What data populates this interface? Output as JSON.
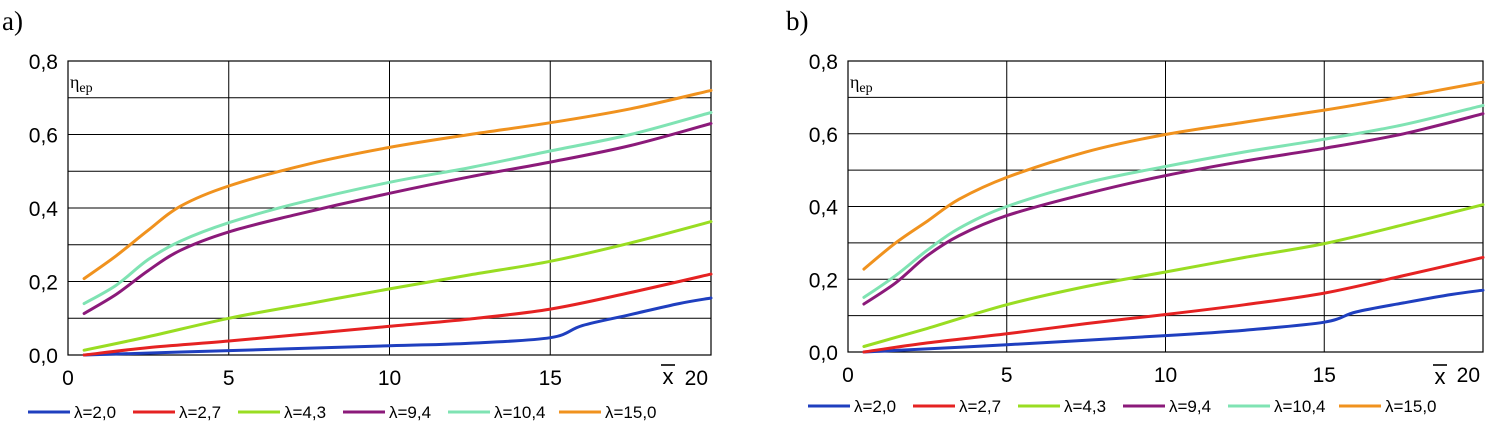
{
  "chart_data": [
    {
      "type": "line",
      "panel": "a)",
      "xlabel": "x",
      "ylabel": "ηep",
      "xlim": [
        0,
        20
      ],
      "ylim": [
        0,
        0.8
      ],
      "xticks": [
        0,
        5,
        10,
        15,
        20
      ],
      "xtick_labels": [
        "0",
        "5",
        "10",
        "15",
        "20"
      ],
      "yticks": [
        0,
        0.2,
        0.4,
        0.6,
        0.8
      ],
      "ytick_labels": [
        "0,0",
        "0,2",
        "0,4",
        "0,6",
        "0,8"
      ],
      "grid": true,
      "series": [
        {
          "name": "λ=2,0",
          "color": "#1f3fbf",
          "x": [
            0.5,
            5,
            10,
            12.5,
            15,
            16,
            17.5,
            19,
            20
          ],
          "y": [
            0.0,
            0.012,
            0.025,
            0.032,
            0.047,
            0.08,
            0.11,
            0.14,
            0.155
          ]
        },
        {
          "name": "λ=2,7",
          "color": "#e52222",
          "x": [
            0.5,
            2.5,
            5,
            7.5,
            10,
            12.5,
            15,
            17.5,
            20
          ],
          "y": [
            0.0,
            0.02,
            0.038,
            0.058,
            0.078,
            0.098,
            0.125,
            0.17,
            0.22
          ]
        },
        {
          "name": "λ=4,3",
          "color": "#99dd22",
          "x": [
            0.5,
            2.5,
            5,
            7.5,
            10,
            12.5,
            15,
            17.5,
            20
          ],
          "y": [
            0.013,
            0.05,
            0.1,
            0.14,
            0.18,
            0.218,
            0.255,
            0.305,
            0.363
          ]
        },
        {
          "name": "λ=9,4",
          "color": "#8b1a7a",
          "x": [
            0.5,
            1.5,
            2.5,
            3.5,
            5,
            7,
            10,
            12.5,
            15,
            17.5,
            20
          ],
          "y": [
            0.113,
            0.165,
            0.23,
            0.285,
            0.335,
            0.38,
            0.44,
            0.485,
            0.525,
            0.57,
            0.63
          ]
        },
        {
          "name": "λ=10,4",
          "color": "#7fe3b3",
          "x": [
            0.5,
            1.5,
            2.5,
            3.5,
            5,
            7,
            10,
            12.5,
            15,
            17.5,
            20
          ],
          "y": [
            0.14,
            0.19,
            0.26,
            0.31,
            0.36,
            0.41,
            0.47,
            0.51,
            0.555,
            0.6,
            0.66
          ]
        },
        {
          "name": "λ=15,0",
          "color": "#f0921e",
          "x": [
            0.5,
            1.5,
            2.5,
            3.5,
            5,
            7.5,
            10,
            12.5,
            15,
            17.5,
            20
          ],
          "y": [
            0.208,
            0.27,
            0.34,
            0.405,
            0.46,
            0.52,
            0.565,
            0.6,
            0.632,
            0.67,
            0.72
          ]
        }
      ]
    },
    {
      "type": "line",
      "panel": "b)",
      "xlabel": "x",
      "ylabel": "ηep",
      "xlim": [
        0,
        20
      ],
      "ylim": [
        0,
        0.8
      ],
      "xticks": [
        0,
        5,
        10,
        15,
        20
      ],
      "xtick_labels": [
        "0",
        "5",
        "10",
        "15",
        "20"
      ],
      "yticks": [
        0,
        0.2,
        0.4,
        0.6,
        0.8
      ],
      "ytick_labels": [
        "0,0",
        "0,2",
        "0,4",
        "0,6",
        "0,8"
      ],
      "grid": true,
      "series": [
        {
          "name": "λ=2,0",
          "color": "#1f3fbf",
          "x": [
            0.5,
            5,
            10,
            12.5,
            15,
            16,
            17.5,
            19,
            20
          ],
          "y": [
            0.0,
            0.02,
            0.045,
            0.06,
            0.082,
            0.11,
            0.135,
            0.158,
            0.17
          ]
        },
        {
          "name": "λ=2,7",
          "color": "#e52222",
          "x": [
            0.5,
            2.5,
            5,
            7.5,
            10,
            12.5,
            15,
            17.5,
            20
          ],
          "y": [
            0.0,
            0.025,
            0.05,
            0.078,
            0.103,
            0.13,
            0.162,
            0.21,
            0.26
          ]
        },
        {
          "name": "λ=4,3",
          "color": "#99dd22",
          "x": [
            0.5,
            2.5,
            5,
            7.5,
            10,
            12.5,
            15,
            17.5,
            20
          ],
          "y": [
            0.015,
            0.065,
            0.13,
            0.18,
            0.22,
            0.26,
            0.298,
            0.35,
            0.405
          ]
        },
        {
          "name": "λ=9,4",
          "color": "#8b1a7a",
          "x": [
            0.5,
            1.5,
            2.5,
            3.5,
            5,
            7.5,
            10,
            12.5,
            15,
            17.5,
            20
          ],
          "y": [
            0.132,
            0.19,
            0.265,
            0.32,
            0.375,
            0.435,
            0.485,
            0.525,
            0.56,
            0.6,
            0.655
          ]
        },
        {
          "name": "λ=10,4",
          "color": "#7fe3b3",
          "x": [
            0.5,
            1.5,
            2.5,
            3.5,
            5,
            7.5,
            10,
            12.5,
            15,
            17.5,
            20
          ],
          "y": [
            0.15,
            0.21,
            0.28,
            0.34,
            0.4,
            0.465,
            0.51,
            0.55,
            0.585,
            0.625,
            0.678
          ]
        },
        {
          "name": "λ=15,0",
          "color": "#f0921e",
          "x": [
            0.5,
            1.5,
            2.5,
            3.5,
            5,
            7.5,
            10,
            12.5,
            15,
            17.5,
            20
          ],
          "y": [
            0.228,
            0.3,
            0.36,
            0.42,
            0.48,
            0.55,
            0.598,
            0.632,
            0.665,
            0.702,
            0.742
          ]
        }
      ]
    }
  ]
}
